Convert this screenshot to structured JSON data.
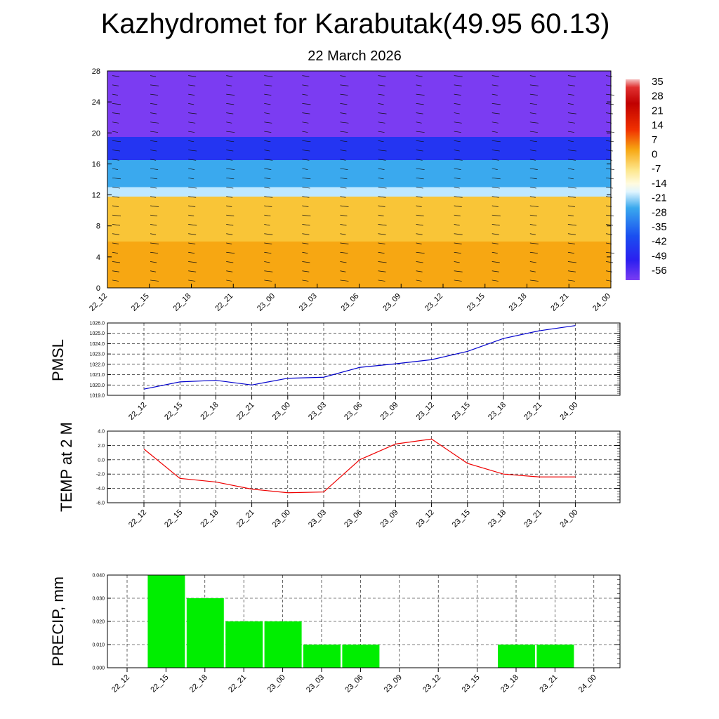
{
  "header": {
    "title": "Kazhydromet for Karabutak(49.95 60.13)",
    "subtitle": "22 March 2026"
  },
  "chart_data": [
    {
      "type": "heatmap",
      "title": "",
      "x_ticks": [
        "22_12",
        "22_15",
        "22_18",
        "22_21",
        "23_00",
        "23_03",
        "23_06",
        "23_09",
        "23_12",
        "23_15",
        "23_18",
        "23_21",
        "24_00"
      ],
      "y_ticks": [
        0,
        4,
        8,
        12,
        16,
        20,
        24,
        28
      ],
      "ylim": [
        0,
        28
      ],
      "colorbar": {
        "labels": [
          "35",
          "28",
          "21",
          "14",
          "7",
          "0",
          "-7",
          "-14",
          "-21",
          "-28",
          "-35",
          "-42",
          "-49",
          "-56"
        ],
        "range": [
          -63,
          42
        ]
      },
      "bands": [
        {
          "y": [
            0,
            6
          ],
          "color": "#f7a712"
        },
        {
          "y": [
            6,
            11.8
          ],
          "color": "#f9c537"
        },
        {
          "y": [
            11.8,
            13
          ],
          "color": "#bfe8ff"
        },
        {
          "y": [
            13,
            16.5
          ],
          "color": "#3aa9ee"
        },
        {
          "y": [
            16.5,
            19.5
          ],
          "color": "#2435f2"
        },
        {
          "y": [
            19.5,
            28
          ],
          "color": "#7b3cf2"
        }
      ],
      "grid": false
    },
    {
      "type": "line",
      "ylabel": "PMSL",
      "categories": [
        "22_12",
        "22_15",
        "22_18",
        "22_21",
        "23_00",
        "23_03",
        "23_06",
        "23_09",
        "23_12",
        "23_15",
        "23_18",
        "23_21",
        "24_00"
      ],
      "y_ticks": [
        "1026.0",
        "1025.0",
        "1024.0",
        "1023.0",
        "1022.0",
        "1021.0",
        "1020.0",
        "1019.0"
      ],
      "ylim": [
        1019,
        1026
      ],
      "series": [
        {
          "color": "#0000cc",
          "values": [
            1019.6,
            1020.3,
            1020.45,
            1020.0,
            1020.65,
            1020.75,
            1021.7,
            1022.05,
            1022.45,
            1023.25,
            1024.5,
            1025.25,
            1025.75
          ]
        }
      ],
      "grid": true
    },
    {
      "type": "line",
      "ylabel": "TEMP at 2 M",
      "categories": [
        "22_12",
        "22_15",
        "22_18",
        "22_21",
        "23_00",
        "23_03",
        "23_06",
        "23_09",
        "23_12",
        "23_15",
        "23_18",
        "23_21",
        "24_00"
      ],
      "y_ticks": [
        "4.0",
        "2.0",
        "0.0",
        "-2.0",
        "-4.0",
        "-6.0"
      ],
      "ylim": [
        -6,
        4
      ],
      "series": [
        {
          "color": "#ee0000",
          "values": [
            1.5,
            -2.6,
            -3.1,
            -4.1,
            -4.6,
            -4.5,
            0.0,
            2.2,
            2.9,
            -0.5,
            -2.0,
            -2.4,
            -2.4
          ]
        }
      ],
      "grid": true
    },
    {
      "type": "bar",
      "ylabel": "PRECIP, mm",
      "categories": [
        "22_12",
        "22_15",
        "22_18",
        "22_21",
        "23_00",
        "23_03",
        "23_06",
        "23_09",
        "23_12",
        "23_15",
        "23_18",
        "23_21",
        "24_00"
      ],
      "y_ticks": [
        "0.040",
        "0.030",
        "0.020",
        "0.010",
        "0.000"
      ],
      "ylim": [
        0,
        0.04
      ],
      "values": [
        0,
        0.04,
        0.03,
        0.02,
        0.02,
        0.01,
        0.01,
        0,
        0,
        0,
        0.01,
        0.01,
        0
      ],
      "color": "#00ee00",
      "grid": true
    }
  ]
}
